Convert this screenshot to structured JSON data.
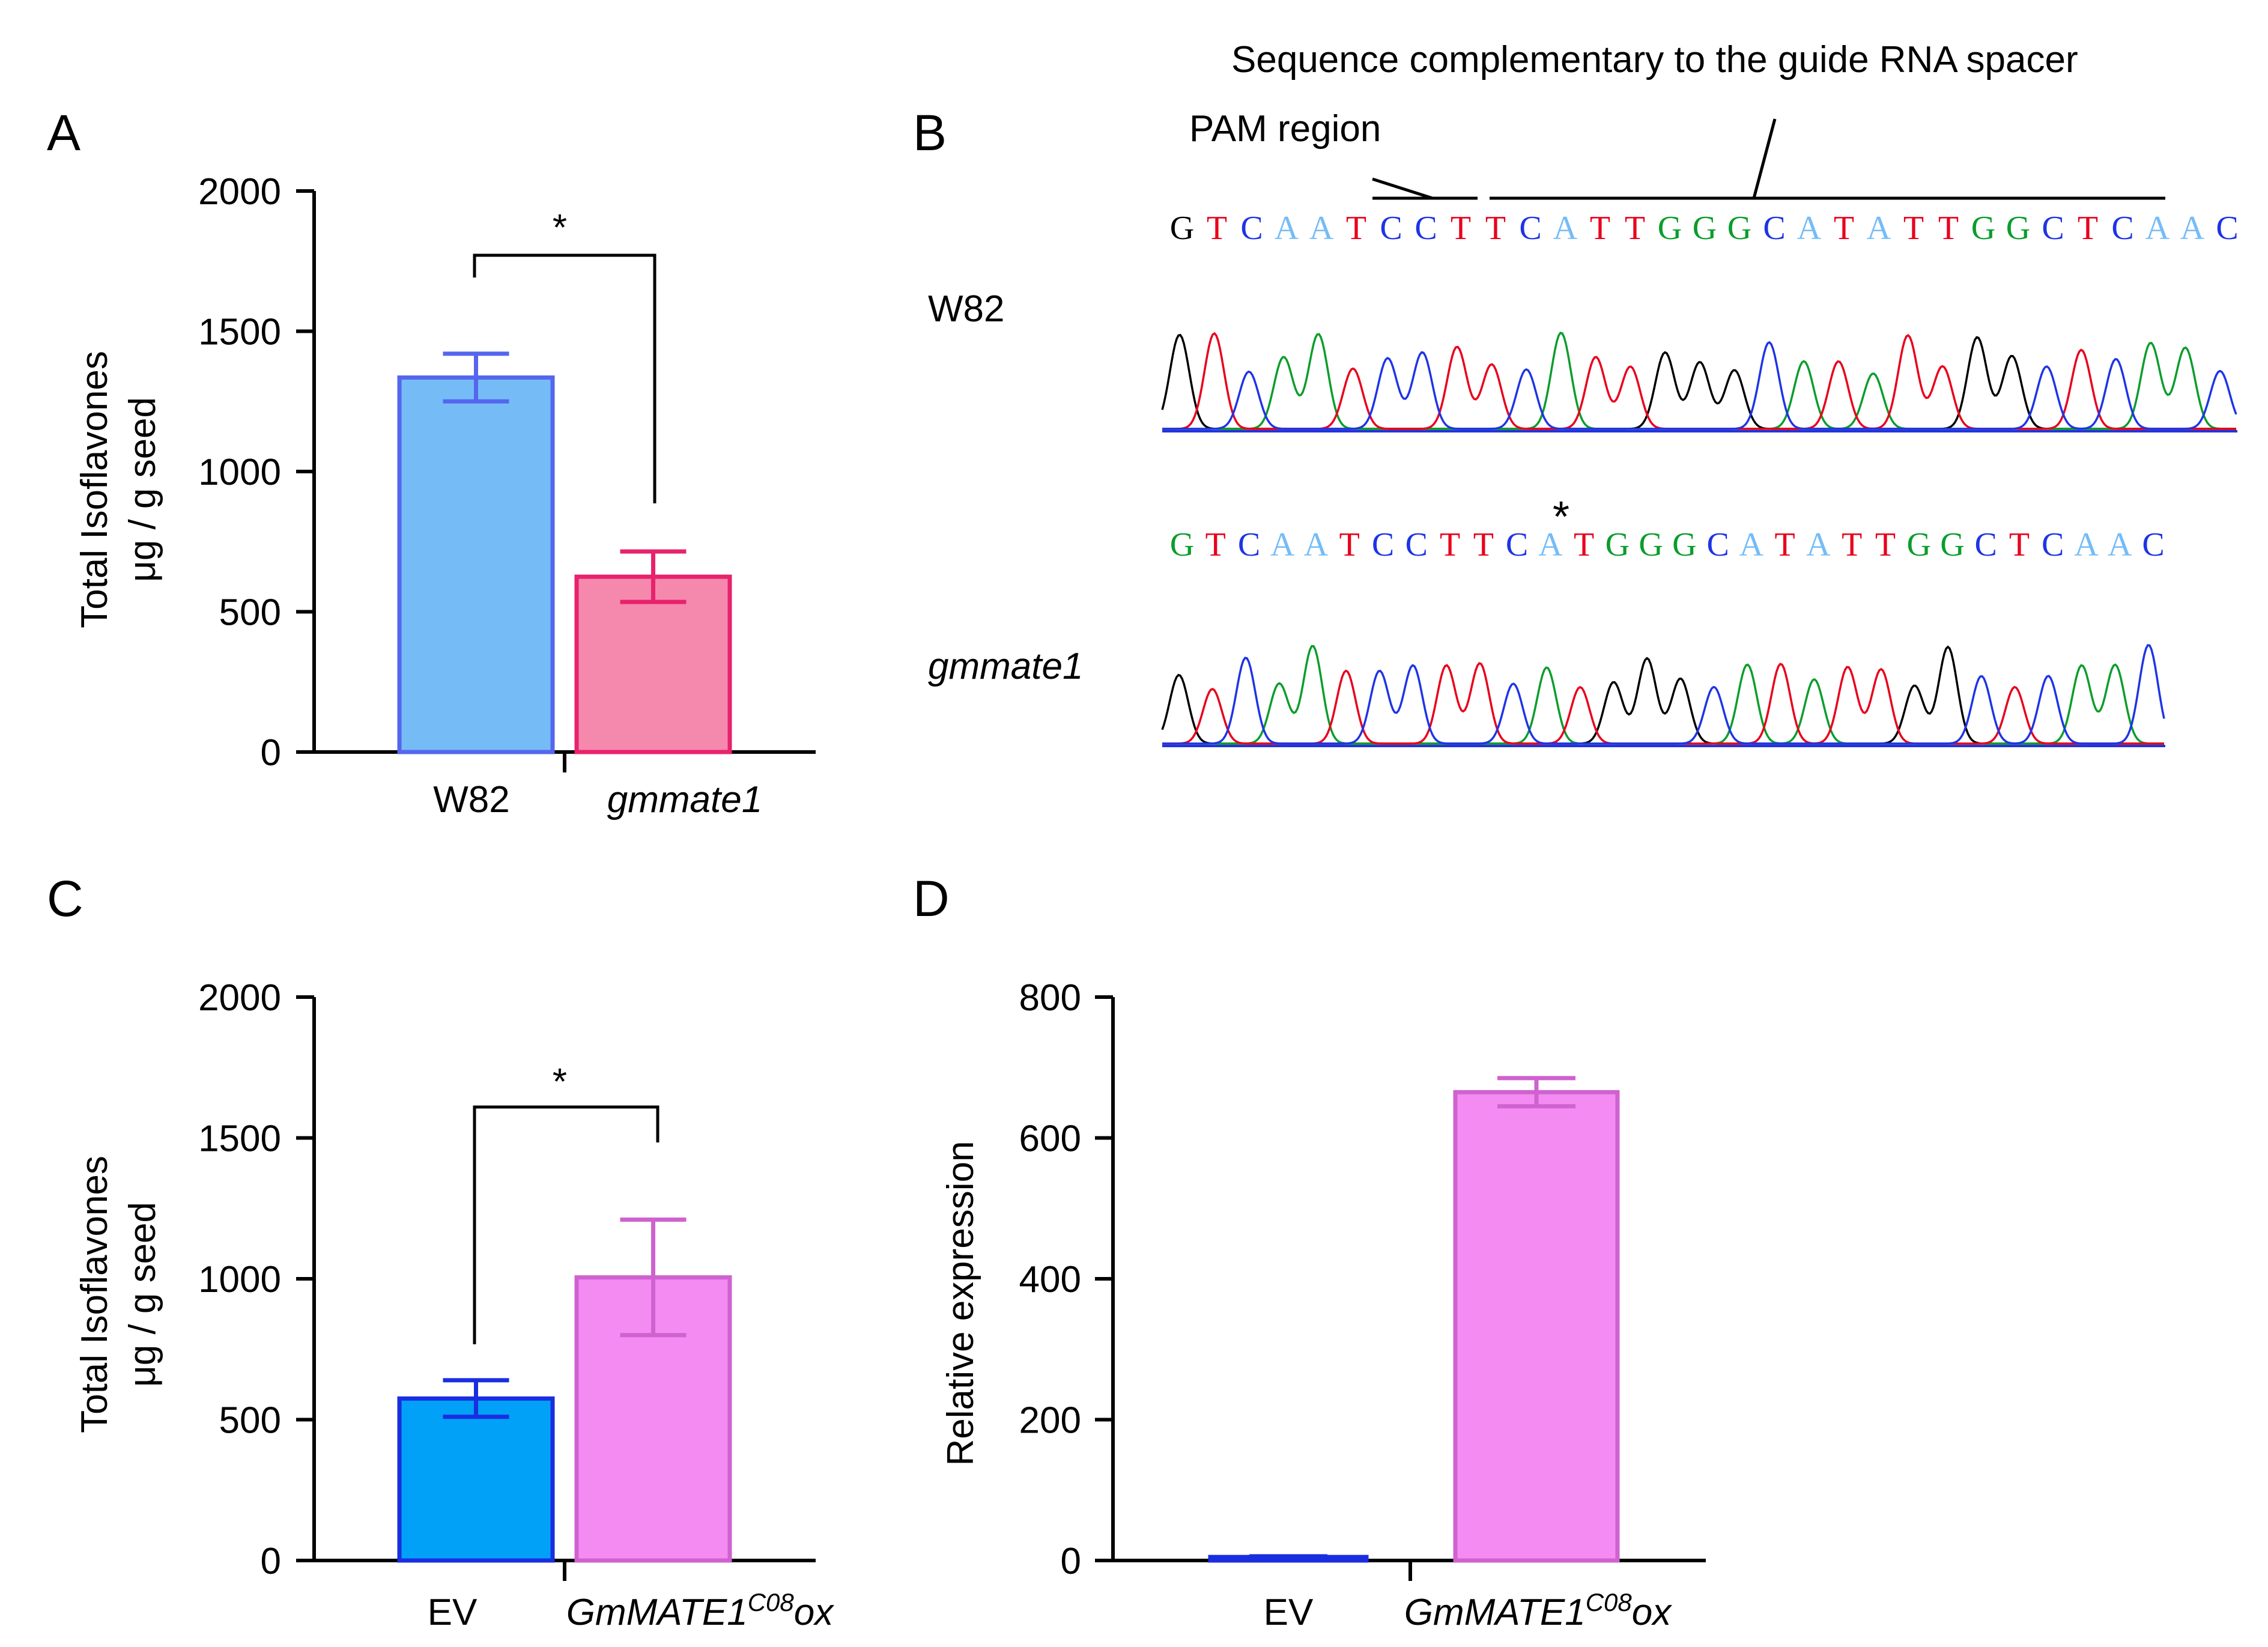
{
  "colors": {
    "A": "#75bcf7",
    "T": "#e8001c",
    "C": "#1e34e6",
    "G": "#0a9d2c",
    "w82_fill": "#75bcf7",
    "w82_edge": "#5566ee",
    "gmmate1_fill": "#f589ad",
    "gmmate1_edge": "#e8226c",
    "ev_fill": "#00a1f7",
    "ev_edge": "#1a2ee0",
    "ox_fill": "#f38bf2",
    "ox_edge": "#cf62cf",
    "evD_edge": "#1a2ee0"
  },
  "chart_data": [
    {
      "panel": "A",
      "type": "bar",
      "ylabel_lines": [
        "Total Isoflavones",
        "μg / g seed"
      ],
      "ylim": [
        0,
        2000
      ],
      "yticks": [
        "0",
        "500",
        "1000",
        "1500",
        "2000"
      ],
      "categories": [
        {
          "label": "W82",
          "italic": false
        },
        {
          "label": "gmmate1",
          "italic": true
        }
      ],
      "values": [
        1335,
        625
      ],
      "errors": [
        85,
        90
      ],
      "significance": "*"
    },
    {
      "panel": "B",
      "type": "sequence",
      "annotations": [
        "Sequence complementary to the guide RNA spacer",
        "PAM region"
      ],
      "rows": [
        {
          "label": "W82",
          "italic": false,
          "sequence": "GTCAATCCTTCATTGGGCATATTGGCTCAAC"
        },
        {
          "label": "gmmate1",
          "italic": true,
          "sequence": "GTCAATCCTTCATGGGCATATTGGCTCAAC",
          "marker": "*"
        }
      ]
    },
    {
      "panel": "C",
      "type": "bar",
      "ylabel_lines": [
        "Total Isoflavones",
        "μg / g seed"
      ],
      "ylim": [
        0,
        2000
      ],
      "yticks": [
        "0",
        "500",
        "1000",
        "1500",
        "2000"
      ],
      "categories": [
        {
          "label": "EV",
          "italic": false
        },
        {
          "label": "GmMATE1",
          "sup": "C08",
          "suffix": "ox",
          "italic": true
        }
      ],
      "values": [
        575,
        1005
      ],
      "errors": [
        65,
        205
      ],
      "significance": "*"
    },
    {
      "panel": "D",
      "type": "bar",
      "ylabel": "Relative expression",
      "ylim": [
        0,
        800
      ],
      "yticks": [
        "0",
        "200",
        "400",
        "600",
        "800"
      ],
      "categories": [
        {
          "label": "EV",
          "italic": false
        },
        {
          "label": "GmMATE1",
          "sup": "C08",
          "suffix": "ox",
          "italic": true
        }
      ],
      "values": [
        5,
        665
      ],
      "errors": [
        1,
        20
      ]
    }
  ]
}
